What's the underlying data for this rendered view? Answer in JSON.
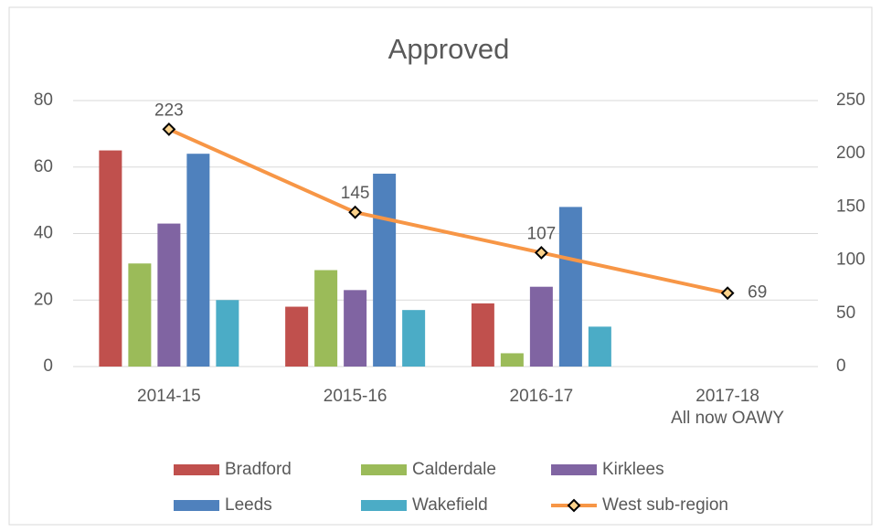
{
  "chart_data": {
    "type": "bar",
    "title": "Approved",
    "categories": [
      "2014-15",
      "2015-16",
      "2016-17",
      "2017-18\nAll now OAWY"
    ],
    "series": [
      {
        "name": "Bradford",
        "color": "#c0504d",
        "values": [
          65,
          18,
          19,
          null
        ]
      },
      {
        "name": "Calderdale",
        "color": "#9bbb59",
        "values": [
          31,
          29,
          4,
          null
        ]
      },
      {
        "name": "Kirklees",
        "color": "#8064a2",
        "values": [
          43,
          23,
          24,
          null
        ]
      },
      {
        "name": "Leeds",
        "color": "#4f81bd",
        "values": [
          64,
          58,
          48,
          null
        ]
      },
      {
        "name": "Wakefield",
        "color": "#4bacc6",
        "values": [
          20,
          17,
          12,
          null
        ]
      },
      {
        "name": "West sub-region",
        "type": "line",
        "axis": "y2",
        "color": "#f79646",
        "marker": "diamond",
        "values": [
          223,
          145,
          107,
          69
        ],
        "show_value_labels": true
      }
    ],
    "ylim": [
      0,
      80
    ],
    "yticks": [
      0,
      20,
      40,
      60,
      80
    ],
    "y2lim": [
      0,
      250
    ],
    "y2ticks": [
      0,
      50,
      100,
      150,
      200,
      250
    ],
    "grid": true,
    "legend": "bottom"
  }
}
